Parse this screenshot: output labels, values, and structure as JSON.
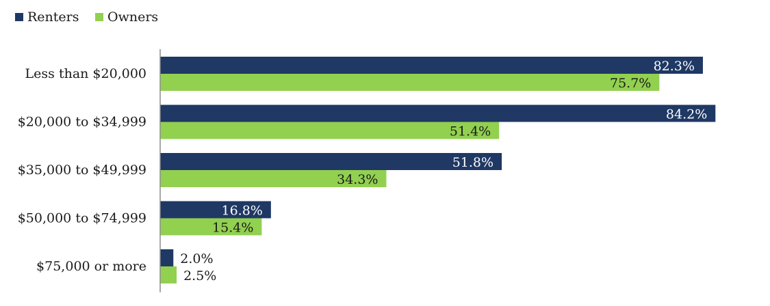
{
  "chart_data": {
    "type": "bar",
    "orientation": "horizontal",
    "categories": [
      "Less than $20,000",
      "$20,000 to $34,999",
      "$35,000 to $49,999",
      "$50,000 to $74,999",
      "$75,000 or more"
    ],
    "series": [
      {
        "name": "Renters",
        "color": "#1f3864",
        "values": [
          82.3,
          84.2,
          51.8,
          16.8,
          2.0
        ],
        "labels": [
          "82.3%",
          "84.2%",
          "51.8%",
          "16.8%",
          "2.0%"
        ]
      },
      {
        "name": "Owners",
        "color": "#92d050",
        "values": [
          75.7,
          51.4,
          34.3,
          15.4,
          2.5
        ],
        "labels": [
          "75.7%",
          "51.4%",
          "34.3%",
          "15.4%",
          "2.5%"
        ]
      }
    ],
    "xlim": [
      0,
      92
    ],
    "legend": "top-left",
    "grid": false
  }
}
